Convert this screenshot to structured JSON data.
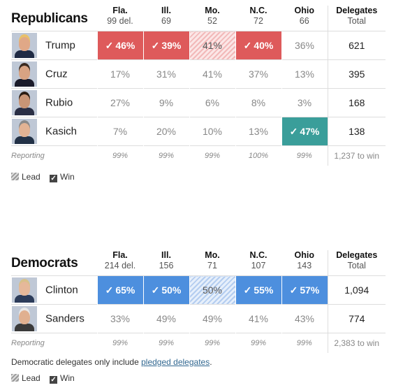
{
  "republicans": {
    "party": "Republicans",
    "states": [
      {
        "name": "Fla.",
        "sub": "99 del."
      },
      {
        "name": "Ill.",
        "sub": "69"
      },
      {
        "name": "Mo.",
        "sub": "52"
      },
      {
        "name": "N.C.",
        "sub": "72"
      },
      {
        "name": "Ohio",
        "sub": "66"
      }
    ],
    "delegates_header": {
      "name": "Delegates",
      "sub": "Total"
    },
    "candidates": [
      {
        "name": "Trump",
        "cells": [
          {
            "v": "46%",
            "s": "winr"
          },
          {
            "v": "39%",
            "s": "winr"
          },
          {
            "v": "41%",
            "s": "leadr"
          },
          {
            "v": "40%",
            "s": "winr"
          },
          {
            "v": "36%",
            "s": ""
          }
        ],
        "delegates": "621",
        "avatar": {
          "face": "#e0a887",
          "hair": "#e8c06a",
          "torso": "#1f2a44"
        }
      },
      {
        "name": "Cruz",
        "cells": [
          {
            "v": "17%",
            "s": ""
          },
          {
            "v": "31%",
            "s": ""
          },
          {
            "v": "41%",
            "s": ""
          },
          {
            "v": "37%",
            "s": ""
          },
          {
            "v": "13%",
            "s": ""
          }
        ],
        "delegates": "395",
        "avatar": {
          "face": "#d8a383",
          "hair": "#3a2a20",
          "torso": "#1b1b2a"
        }
      },
      {
        "name": "Rubio",
        "cells": [
          {
            "v": "27%",
            "s": ""
          },
          {
            "v": "9%",
            "s": ""
          },
          {
            "v": "6%",
            "s": ""
          },
          {
            "v": "8%",
            "s": ""
          },
          {
            "v": "3%",
            "s": ""
          }
        ],
        "delegates": "168",
        "avatar": {
          "face": "#c99576",
          "hair": "#2b1d14",
          "torso": "#2a2f45"
        }
      },
      {
        "name": "Kasich",
        "cells": [
          {
            "v": "7%",
            "s": ""
          },
          {
            "v": "20%",
            "s": ""
          },
          {
            "v": "10%",
            "s": ""
          },
          {
            "v": "13%",
            "s": ""
          },
          {
            "v": "47%",
            "s": "wint"
          }
        ],
        "delegates": "138",
        "avatar": {
          "face": "#e2b394",
          "hair": "#8a8a8a",
          "torso": "#233247"
        }
      }
    ],
    "reporting": {
      "label": "Reporting",
      "values": [
        "99%",
        "99%",
        "99%",
        "100%",
        "99%"
      ],
      "to_win": "1,237 to win"
    },
    "legend": {
      "lead": "Lead",
      "win": "Win"
    }
  },
  "democrats": {
    "party": "Democrats",
    "states": [
      {
        "name": "Fla.",
        "sub": "214 del."
      },
      {
        "name": "Ill.",
        "sub": "156"
      },
      {
        "name": "Mo.",
        "sub": "71"
      },
      {
        "name": "N.C.",
        "sub": "107"
      },
      {
        "name": "Ohio",
        "sub": "143"
      }
    ],
    "delegates_header": {
      "name": "Delegates",
      "sub": "Total"
    },
    "candidates": [
      {
        "name": "Clinton",
        "cells": [
          {
            "v": "65%",
            "s": "winb"
          },
          {
            "v": "50%",
            "s": "winb"
          },
          {
            "v": "50%",
            "s": "leadb"
          },
          {
            "v": "55%",
            "s": "winb"
          },
          {
            "v": "57%",
            "s": "winb"
          }
        ],
        "delegates": "1,094",
        "avatar": {
          "face": "#e6b89a",
          "hair": "#d8c08a",
          "torso": "#2c3c5a"
        }
      },
      {
        "name": "Sanders",
        "cells": [
          {
            "v": "33%",
            "s": ""
          },
          {
            "v": "49%",
            "s": ""
          },
          {
            "v": "49%",
            "s": ""
          },
          {
            "v": "41%",
            "s": ""
          },
          {
            "v": "43%",
            "s": ""
          }
        ],
        "delegates": "774",
        "avatar": {
          "face": "#e0b090",
          "hair": "#e8e8e8",
          "torso": "#3a3a3a"
        }
      }
    ],
    "reporting": {
      "label": "Reporting",
      "values": [
        "99%",
        "99%",
        "99%",
        "99%",
        "99%"
      ],
      "to_win": "2,383 to win"
    },
    "note": {
      "text": "Democratic delegates only include ",
      "link": "pledged delegates",
      "end": "."
    },
    "legend": {
      "lead": "Lead",
      "win": "Win"
    }
  }
}
